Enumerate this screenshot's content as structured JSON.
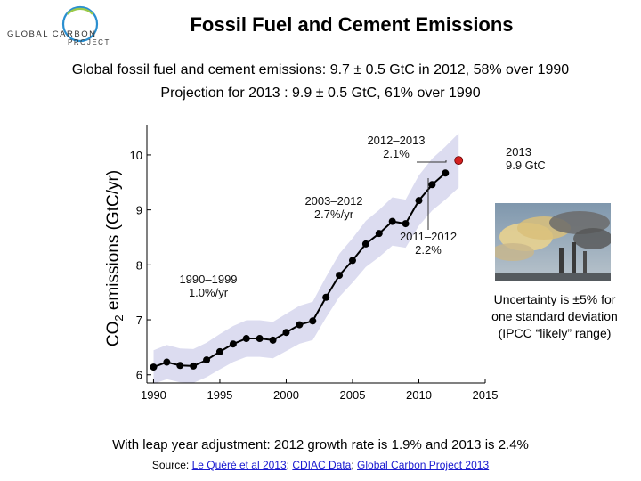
{
  "logo": {
    "line1": "GLOBAL CARBON",
    "line2": "PROJECT"
  },
  "title": "Fossil Fuel and Cement Emissions",
  "subtitle_1": "Global fossil fuel and cement emissions: 9.7 ± 0.5 GtC in 2012, 58% over 1990",
  "subtitle_2": "Projection for 2013 : 9.9 ± 0.5 GtC, 61% over 1990",
  "chart_data": {
    "type": "line",
    "ylabel": "CO2 emissions (GtC/yr)",
    "xlim": [
      1989.5,
      2015
    ],
    "ylim": [
      5.85,
      10.55
    ],
    "x_ticks": [
      1990,
      1995,
      2000,
      2005,
      2010,
      2015
    ],
    "y_ticks": [
      6,
      7,
      8,
      9,
      10
    ],
    "grid": false,
    "series": [
      {
        "x": [
          1990,
          1991,
          1992,
          1993,
          1994,
          1995,
          1996,
          1997,
          1998,
          1999,
          2000,
          2001,
          2002,
          2003,
          2004,
          2005,
          2006,
          2007,
          2008,
          2009,
          2010,
          2011,
          2012
        ],
        "y": [
          6.14,
          6.23,
          6.17,
          6.16,
          6.27,
          6.42,
          6.56,
          6.66,
          6.66,
          6.63,
          6.77,
          6.91,
          6.98,
          7.41,
          7.81,
          8.08,
          8.38,
          8.57,
          8.79,
          8.75,
          9.17,
          9.46,
          9.67
        ],
        "uncertainty": 0.05,
        "color": "#000000"
      }
    ],
    "projection": {
      "x": 2013,
      "y": 9.9,
      "color": "#d42020"
    },
    "annotations": [
      {
        "line1": "2012–2013",
        "line2": "2.1%"
      },
      {
        "line1": "2013",
        "line2": "9.9 GtC"
      },
      {
        "line1": "2003–2012",
        "line2": "2.7%/yr"
      },
      {
        "line1": "2011–2012",
        "line2": "2.2%"
      },
      {
        "line1": "1990–1999",
        "line2": "1.0%/yr"
      }
    ],
    "band_color": "#dcdcf0"
  },
  "uncertainty_note": "Uncertainty is ±5% for one standard deviation (IPCC “likely” range)",
  "leap_year_note": "With leap year adjustment: 2012 growth rate is 1.9% and 2013 is 2.4%",
  "source": {
    "prefix": "Source: ",
    "link1": "Le Quéré et al 2013",
    "sep1": "; ",
    "link2": "CDIAC Data",
    "sep2": "; ",
    "link3": "Global Carbon Project 2013"
  }
}
